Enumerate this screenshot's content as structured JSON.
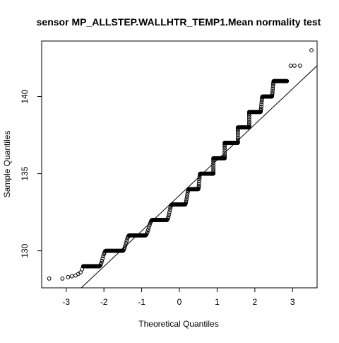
{
  "chart_data": {
    "type": "scatter",
    "title": "sensor MP_ALLSTEP.WALLHTR_TEMP1.Mean normality test",
    "xlabel": "Theoretical Quantiles",
    "ylabel": "Sample Quantiles",
    "xlim": [
      -3.65,
      3.65
    ],
    "ylim": [
      127.6,
      143.6
    ],
    "x_ticks": [
      -3,
      -2,
      -1,
      0,
      1,
      2,
      3
    ],
    "x_tick_labels": [
      "-3",
      "-2",
      "-1",
      "0",
      "1",
      "2",
      "3"
    ],
    "y_ticks": [
      130,
      135,
      140
    ],
    "y_tick_labels": [
      "130",
      "135",
      "140"
    ],
    "grid": false,
    "legend": "none",
    "marker": "open-circle",
    "reference_line": {
      "x": [
        -2.6,
        3.65
      ],
      "y": [
        127.6,
        142.0
      ]
    },
    "plateaus": [
      {
        "value": 129.0,
        "x_start": -2.55,
        "x_end": -2.12
      },
      {
        "value": 130.0,
        "x_start": -1.95,
        "x_end": -1.5
      },
      {
        "value": 131.0,
        "x_start": -1.33,
        "x_end": -0.9
      },
      {
        "value": 132.0,
        "x_start": -0.72,
        "x_end": -0.33
      },
      {
        "value": 133.0,
        "x_start": -0.2,
        "x_end": 0.15
      },
      {
        "value": 134.0,
        "x_start": 0.25,
        "x_end": 0.5
      },
      {
        "value": 135.0,
        "x_start": 0.55,
        "x_end": 0.9
      },
      {
        "value": 136.0,
        "x_start": 0.9,
        "x_end": 1.2
      },
      {
        "value": 137.0,
        "x_start": 1.2,
        "x_end": 1.55
      },
      {
        "value": 138.0,
        "x_start": 1.55,
        "x_end": 1.85
      },
      {
        "value": 139.0,
        "x_start": 1.85,
        "x_end": 2.15
      },
      {
        "value": 140.0,
        "x_start": 2.2,
        "x_end": 2.45
      },
      {
        "value": 141.0,
        "x_start": 2.5,
        "x_end": 2.85
      }
    ],
    "outliers": [
      {
        "x": -3.45,
        "y": 128.2
      },
      {
        "x": -3.1,
        "y": 128.2
      },
      {
        "x": -2.95,
        "y": 128.3
      },
      {
        "x": -2.85,
        "y": 128.35
      },
      {
        "x": -2.75,
        "y": 128.4
      },
      {
        "x": -2.68,
        "y": 128.5
      },
      {
        "x": -2.62,
        "y": 128.6
      },
      {
        "x": -2.58,
        "y": 128.8
      },
      {
        "x": 2.95,
        "y": 142.0
      },
      {
        "x": 3.05,
        "y": 142.0
      },
      {
        "x": 3.2,
        "y": 142.0
      },
      {
        "x": 3.5,
        "y": 143.0
      }
    ]
  }
}
